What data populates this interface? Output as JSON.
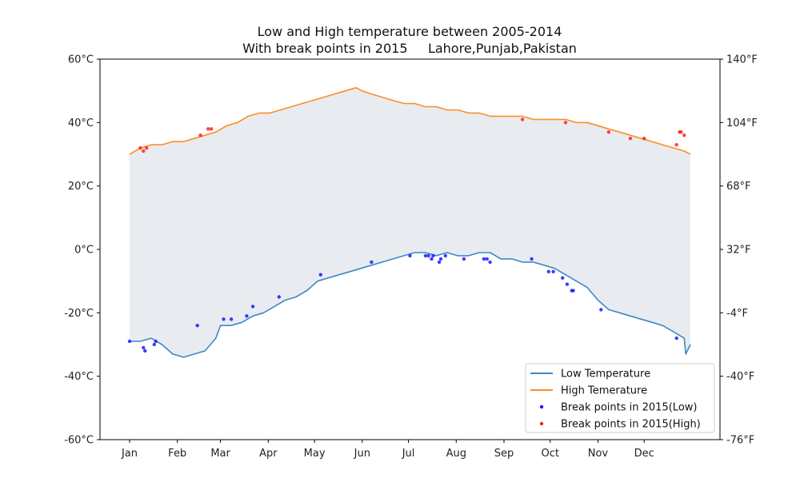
{
  "chart_data": {
    "type": "line",
    "title": "Low and High temperature between 2005-2014",
    "subtitle": "With break points in 2015     Lahore,Punjab,Pakistan",
    "xlabel": "",
    "ylabel": "",
    "x_domain": [
      1,
      365
    ],
    "ylim": [
      -60,
      60
    ],
    "y_ticks": [
      {
        "value": -60,
        "label": "-60°C"
      },
      {
        "value": -40,
        "label": "-40°C"
      },
      {
        "value": -20,
        "label": "-20°C"
      },
      {
        "value": 0,
        "label": "0°C"
      },
      {
        "value": 20,
        "label": "20°C"
      },
      {
        "value": 40,
        "label": "40°C"
      },
      {
        "value": 60,
        "label": "60°C"
      }
    ],
    "y2_ticks": [
      {
        "value": -60,
        "label": "-76°F"
      },
      {
        "value": -40,
        "label": "-40°F"
      },
      {
        "value": -20,
        "label": "-4°F"
      },
      {
        "value": 0,
        "label": "32°F"
      },
      {
        "value": 20,
        "label": "68°F"
      },
      {
        "value": 40,
        "label": "104°F"
      },
      {
        "value": 60,
        "label": "140°F"
      }
    ],
    "x_ticks": [
      {
        "day": 1,
        "label": "Jan"
      },
      {
        "day": 32,
        "label": "Feb"
      },
      {
        "day": 60,
        "label": "Mar"
      },
      {
        "day": 91,
        "label": "Apr"
      },
      {
        "day": 121,
        "label": "May"
      },
      {
        "day": 152,
        "label": "Jun"
      },
      {
        "day": 182,
        "label": "Jul"
      },
      {
        "day": 213,
        "label": "Aug"
      },
      {
        "day": 244,
        "label": "Sep"
      },
      {
        "day": 274,
        "label": "Oct"
      },
      {
        "day": 305,
        "label": "Nov"
      },
      {
        "day": 335,
        "label": "Dec"
      }
    ],
    "fill_between": true,
    "fill_color": "#e8ecf0",
    "series": [
      {
        "name": "Low Temperature",
        "kind": "line",
        "color": "#3f88c5",
        "points": [
          [
            1,
            -29
          ],
          [
            8,
            -29
          ],
          [
            15,
            -28
          ],
          [
            22,
            -30
          ],
          [
            29,
            -33
          ],
          [
            36,
            -34
          ],
          [
            43,
            -33
          ],
          [
            50,
            -32
          ],
          [
            57,
            -28
          ],
          [
            60,
            -24
          ],
          [
            67,
            -24
          ],
          [
            74,
            -23
          ],
          [
            81,
            -21
          ],
          [
            88,
            -20
          ],
          [
            95,
            -18
          ],
          [
            102,
            -16
          ],
          [
            109,
            -15
          ],
          [
            116,
            -13
          ],
          [
            123,
            -10
          ],
          [
            130,
            -9
          ],
          [
            137,
            -8
          ],
          [
            144,
            -7
          ],
          [
            151,
            -6
          ],
          [
            158,
            -5
          ],
          [
            165,
            -4
          ],
          [
            172,
            -3
          ],
          [
            179,
            -2
          ],
          [
            186,
            -1
          ],
          [
            193,
            -1
          ],
          [
            200,
            -2
          ],
          [
            207,
            -1
          ],
          [
            214,
            -2
          ],
          [
            221,
            -2
          ],
          [
            228,
            -1
          ],
          [
            235,
            -1
          ],
          [
            242,
            -3
          ],
          [
            249,
            -3
          ],
          [
            256,
            -4
          ],
          [
            263,
            -4
          ],
          [
            270,
            -5
          ],
          [
            277,
            -6
          ],
          [
            284,
            -8
          ],
          [
            291,
            -10
          ],
          [
            298,
            -12
          ],
          [
            305,
            -16
          ],
          [
            312,
            -19
          ],
          [
            319,
            -20
          ],
          [
            326,
            -21
          ],
          [
            333,
            -22
          ],
          [
            340,
            -23
          ],
          [
            347,
            -24
          ],
          [
            354,
            -26
          ],
          [
            361,
            -28
          ],
          [
            362,
            -33
          ],
          [
            365,
            -30
          ]
        ]
      },
      {
        "name": "High Temerature",
        "kind": "line",
        "color": "#ff8c28",
        "points": [
          [
            1,
            30
          ],
          [
            8,
            32
          ],
          [
            15,
            33
          ],
          [
            22,
            33
          ],
          [
            29,
            34
          ],
          [
            36,
            34
          ],
          [
            43,
            35
          ],
          [
            50,
            36
          ],
          [
            57,
            37
          ],
          [
            64,
            39
          ],
          [
            71,
            40
          ],
          [
            78,
            42
          ],
          [
            85,
            43
          ],
          [
            92,
            43
          ],
          [
            99,
            44
          ],
          [
            106,
            45
          ],
          [
            113,
            46
          ],
          [
            120,
            47
          ],
          [
            127,
            48
          ],
          [
            134,
            49
          ],
          [
            141,
            50
          ],
          [
            148,
            51
          ],
          [
            152,
            50
          ],
          [
            158,
            49
          ],
          [
            165,
            48
          ],
          [
            172,
            47
          ],
          [
            179,
            46
          ],
          [
            186,
            46
          ],
          [
            193,
            45
          ],
          [
            200,
            45
          ],
          [
            207,
            44
          ],
          [
            214,
            44
          ],
          [
            221,
            43
          ],
          [
            228,
            43
          ],
          [
            235,
            42
          ],
          [
            242,
            42
          ],
          [
            249,
            42
          ],
          [
            256,
            42
          ],
          [
            263,
            41
          ],
          [
            270,
            41
          ],
          [
            277,
            41
          ],
          [
            284,
            41
          ],
          [
            291,
            40
          ],
          [
            298,
            40
          ],
          [
            305,
            39
          ],
          [
            312,
            38
          ],
          [
            319,
            37
          ],
          [
            326,
            36
          ],
          [
            333,
            35
          ],
          [
            340,
            34
          ],
          [
            347,
            33
          ],
          [
            354,
            32
          ],
          [
            361,
            31
          ],
          [
            365,
            30
          ]
        ]
      },
      {
        "name": "Break points in 2015(Low)",
        "kind": "scatter",
        "color": "#1a1aff",
        "points": [
          [
            1,
            -29
          ],
          [
            10,
            -31
          ],
          [
            11,
            -32
          ],
          [
            17,
            -30
          ],
          [
            18,
            -29
          ],
          [
            45,
            -24
          ],
          [
            62,
            -22
          ],
          [
            67,
            -22
          ],
          [
            77,
            -21
          ],
          [
            81,
            -18
          ],
          [
            98,
            -15
          ],
          [
            125,
            -8
          ],
          [
            158,
            -4
          ],
          [
            183,
            -2
          ],
          [
            193,
            -2
          ],
          [
            195,
            -2
          ],
          [
            197,
            -3
          ],
          [
            198,
            -2
          ],
          [
            202,
            -4
          ],
          [
            203,
            -3
          ],
          [
            206,
            -2
          ],
          [
            218,
            -3
          ],
          [
            231,
            -3
          ],
          [
            233,
            -3
          ],
          [
            235,
            -4
          ],
          [
            262,
            -3
          ],
          [
            273,
            -7
          ],
          [
            276,
            -7
          ],
          [
            282,
            -9
          ],
          [
            285,
            -11
          ],
          [
            288,
            -13
          ],
          [
            289,
            -13
          ],
          [
            307,
            -19
          ],
          [
            356,
            -28
          ]
        ]
      },
      {
        "name": "Break points in 2015(High)",
        "kind": "scatter",
        "color": "#ff2020",
        "points": [
          [
            8,
            32
          ],
          [
            10,
            31
          ],
          [
            12,
            32
          ],
          [
            47,
            36
          ],
          [
            52,
            38
          ],
          [
            54,
            38
          ],
          [
            256,
            41
          ],
          [
            284,
            40
          ],
          [
            312,
            37
          ],
          [
            326,
            35
          ],
          [
            335,
            35
          ],
          [
            356,
            33
          ],
          [
            358,
            37
          ],
          [
            359,
            37
          ],
          [
            361,
            36
          ]
        ]
      }
    ],
    "legend": {
      "placement": "lower-right",
      "entries": [
        "Low Temperature",
        "High Temerature",
        "Break points in 2015(Low)",
        "Break points in 2015(High)"
      ]
    },
    "grid": false
  }
}
